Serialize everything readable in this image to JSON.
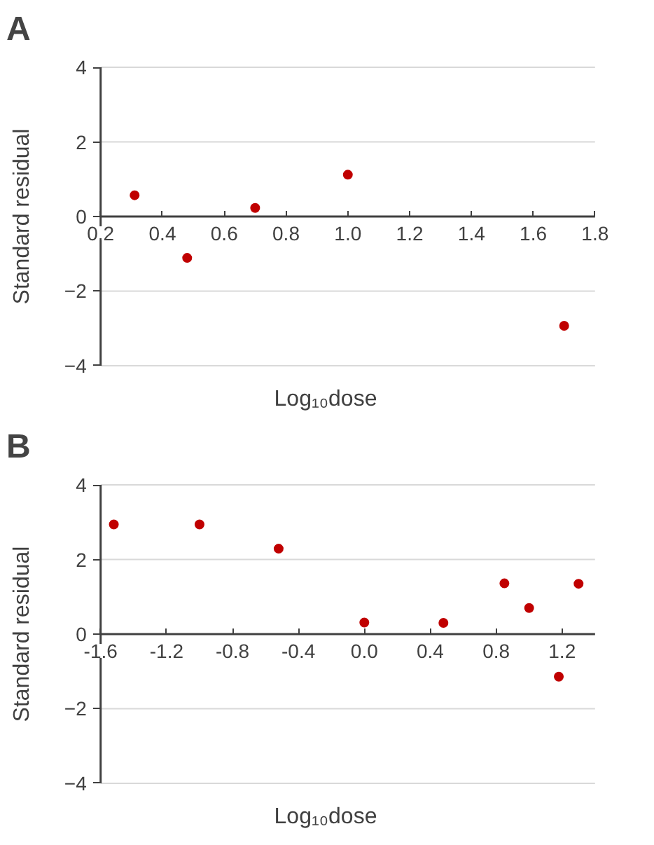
{
  "chart_data": [
    {
      "type": "scatter",
      "title": "A",
      "xlabel": "Log₁₀dose",
      "ylabel": "Standard residual",
      "x": [
        0.31,
        0.48,
        0.7,
        1.0,
        1.7
      ],
      "series": [
        {
          "color": "#c00000",
          "values": [
            0.57,
            -1.11,
            0.23,
            1.12,
            -2.93
          ]
        }
      ],
      "xlim": [
        0.2,
        1.8
      ],
      "xticks": [
        0.2,
        0.4,
        0.6,
        0.8,
        {
          "value": 1,
          "label": "1.0"
        },
        1.2,
        1.4,
        1.6,
        1.8
      ],
      "ylim": [
        -4,
        4
      ],
      "yticks": [
        -4,
        -2,
        0,
        2,
        4
      ],
      "grid": "y",
      "marker": "circle"
    },
    {
      "type": "scatter",
      "title": "B",
      "xlabel": "Log₁₀dose",
      "ylabel": "Standard residual",
      "x": [
        -1.52,
        -1.0,
        -0.52,
        0.0,
        0.48,
        0.85,
        1.0,
        1.18,
        1.3
      ],
      "series": [
        {
          "color": "#c00000",
          "values": [
            2.94,
            2.94,
            2.29,
            0.31,
            0.3,
            1.36,
            0.7,
            -1.14,
            1.35
          ]
        }
      ],
      "xlim": [
        -1.6,
        1.4
      ],
      "xticks": [
        -1.6,
        -1.2,
        -0.8,
        -0.4,
        {
          "value": 0,
          "label": "0.0"
        },
        0.4,
        0.8,
        1.2
      ],
      "ylim": [
        -4,
        4
      ],
      "yticks": [
        -4,
        -2,
        0,
        2,
        4
      ],
      "grid": "y",
      "marker": "circle"
    }
  ]
}
